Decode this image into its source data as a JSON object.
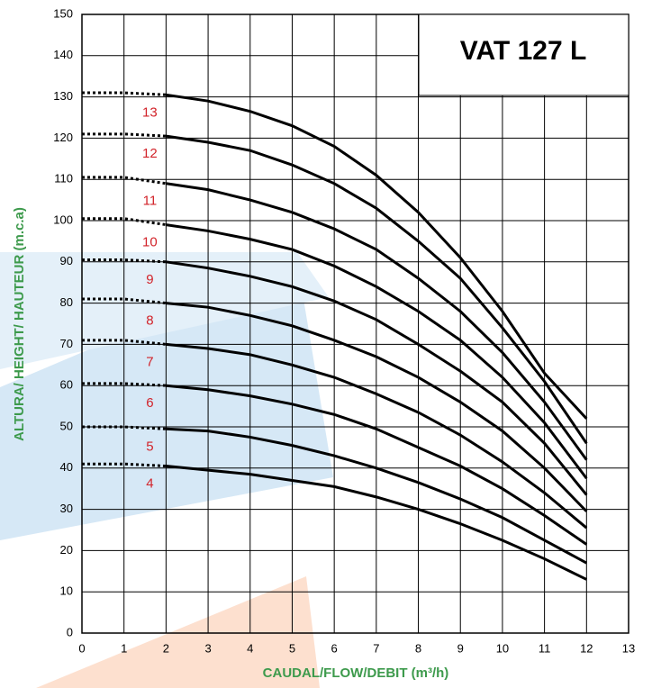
{
  "chart_data": {
    "type": "line",
    "title": "VAT 127 L",
    "x_label": "CAUDAL/FLOW/DEBIT (m³/h)",
    "y_label": "ALTURA/ HEIGHT/ HAUTEUR (m.c.a)",
    "x": [
      0,
      1,
      2,
      3,
      4,
      5,
      6,
      7,
      8,
      9,
      10,
      11,
      12
    ],
    "xlim": [
      0,
      13
    ],
    "xticks": [
      0,
      1,
      2,
      3,
      4,
      5,
      6,
      7,
      8,
      9,
      10,
      11,
      12,
      13
    ],
    "ylim": [
      0,
      150
    ],
    "yticks": [
      0,
      10,
      20,
      30,
      40,
      50,
      60,
      70,
      80,
      90,
      100,
      110,
      120,
      130,
      140,
      150
    ],
    "grid": true,
    "dotted_below_x": 2,
    "line_color": "#000000",
    "label_color": "#d2232a",
    "series": [
      {
        "name": "13",
        "values": [
          131,
          131,
          130.5,
          129,
          126.5,
          123,
          118,
          111,
          102,
          91,
          78,
          63,
          52
        ]
      },
      {
        "name": "12",
        "values": [
          121,
          121,
          120.5,
          119,
          117,
          113.5,
          109,
          103,
          95,
          86,
          74,
          61,
          46
        ]
      },
      {
        "name": "11",
        "values": [
          110.5,
          110.5,
          109,
          107.5,
          105,
          102,
          98,
          93,
          86,
          78,
          68,
          56,
          42
        ]
      },
      {
        "name": "10",
        "values": [
          100.5,
          100.5,
          99,
          97.5,
          95.5,
          93,
          89,
          84,
          78,
          71,
          62,
          51,
          37.5
        ]
      },
      {
        "name": "9",
        "values": [
          90.5,
          90.5,
          90,
          88.5,
          86.5,
          84,
          80.5,
          76,
          70,
          63.5,
          56,
          46,
          33.5
        ]
      },
      {
        "name": "8",
        "values": [
          81,
          81,
          80,
          79,
          77,
          74.5,
          71,
          67,
          62,
          56,
          49,
          40,
          29.5
        ]
      },
      {
        "name": "7",
        "values": [
          71,
          71,
          70,
          69,
          67.5,
          65,
          62,
          58,
          53.5,
          48,
          41.5,
          34,
          25.5
        ]
      },
      {
        "name": "6",
        "values": [
          60.5,
          60.5,
          60,
          59,
          57.5,
          55.5,
          53,
          49.5,
          45,
          40.5,
          35,
          28.5,
          21.5
        ]
      },
      {
        "name": "5",
        "values": [
          50,
          50,
          49.5,
          49,
          47.5,
          45.5,
          43,
          40,
          36.5,
          32.5,
          28,
          22.5,
          17
        ]
      },
      {
        "name": "4",
        "values": [
          41,
          41,
          40.5,
          39.5,
          38.5,
          37,
          35.5,
          33,
          30,
          26.5,
          22.5,
          18,
          13
        ]
      }
    ]
  }
}
